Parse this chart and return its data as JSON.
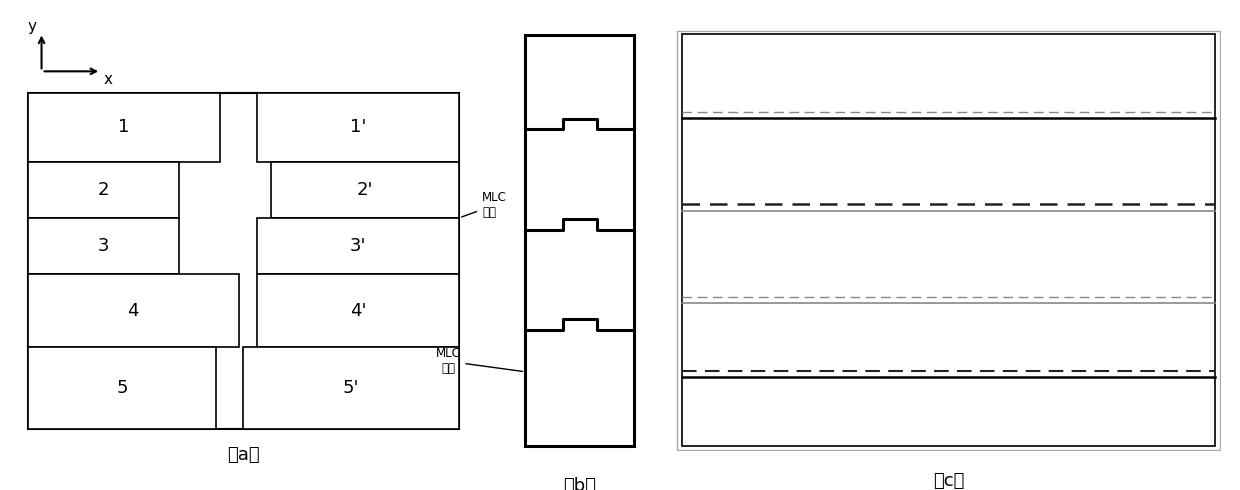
{
  "fig_width": 12.4,
  "fig_height": 4.9,
  "bg_color": "#ffffff",
  "label_a": "（a）",
  "label_b": "（b）",
  "label_c": "（c）",
  "mlc_label_upper": "MLC\n叶片",
  "mlc_label_lower": "MLC\n叶片",
  "black": "#000000",
  "gray": "#aaaaaa",
  "dark_gray": "#555555",
  "light_gray": "#bbbbbb"
}
